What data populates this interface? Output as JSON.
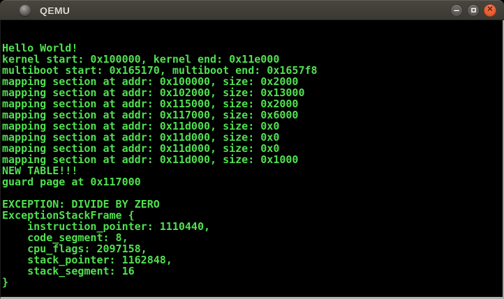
{
  "window": {
    "title": "QEMU",
    "controls": {
      "minimize_glyph": "",
      "maximize_glyph": "",
      "close_glyph": "✕"
    },
    "icons": [
      "qemu-app-icon",
      "minimize-icon",
      "maximize-icon",
      "close-icon"
    ]
  },
  "terminal": {
    "lines": [
      "",
      "",
      "Hello World!",
      "kernel start: 0x100000, kernel end: 0x11e000",
      "multiboot start: 0x165170, multiboot end: 0x1657f8",
      "mapping section at addr: 0x100000, size: 0x2000",
      "mapping section at addr: 0x102000, size: 0x13000",
      "mapping section at addr: 0x115000, size: 0x2000",
      "mapping section at addr: 0x117000, size: 0x6000",
      "mapping section at addr: 0x11d000, size: 0x0",
      "mapping section at addr: 0x11d000, size: 0x0",
      "mapping section at addr: 0x11d000, size: 0x0",
      "mapping section at addr: 0x11d000, size: 0x1000",
      "NEW TABLE!!!",
      "guard page at 0x117000",
      "",
      "EXCEPTION: DIVIDE BY ZERO",
      "ExceptionStackFrame {",
      "    instruction_pointer: 1110440,",
      "    code_segment: 8,",
      "    cpu_flags: 2097158,",
      "    stack_pointer: 1162848,",
      "    stack_segment: 16",
      "}",
      ""
    ]
  },
  "colors": {
    "text_green": "#50e150",
    "screen_bg": "#000000",
    "titlebar_top": "#48463f",
    "titlebar_bottom": "#3a3832",
    "title_text": "#dcd8d1",
    "close_button_top": "#f3774f",
    "close_button_bottom": "#e14a1e",
    "button_gray_top": "#716f69",
    "button_gray_bottom": "#4d4c48",
    "edge_light": "#b3b1ad",
    "edge_light2": "#a9a7a3"
  }
}
